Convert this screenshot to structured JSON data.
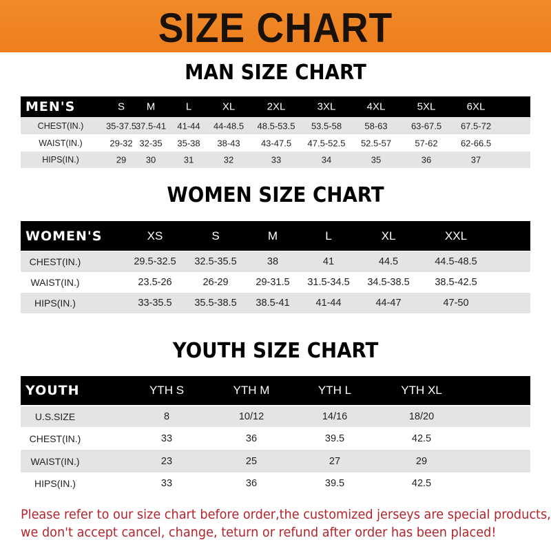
{
  "title": "SIZE CHART",
  "men": {
    "title": "MAN SIZE CHART",
    "header_label": "MEN'S",
    "sizes": [
      "S",
      "M",
      "L",
      "XL",
      "2XL",
      "3XL",
      "4XL",
      "5XL",
      "6XL"
    ],
    "rows": [
      {
        "label": "CHEST(IN.)",
        "values": [
          "35-37.5",
          "37.5-41",
          "41-44",
          "44-48.5",
          "48.5-53.5",
          "53.5-58",
          "58-63",
          "63-67.5",
          "67.5-72"
        ]
      },
      {
        "label": "WAIST(IN.)",
        "values": [
          "29-32",
          "32-35",
          "35-38",
          "38-43",
          "43-47.5",
          "47.5-52.5",
          "52.5-57",
          "57-62",
          "62-66.5"
        ]
      },
      {
        "label": "HIPS(IN.)",
        "values": [
          "29",
          "30",
          "31",
          "32",
          "33",
          "34",
          "35",
          "36",
          "37"
        ]
      }
    ]
  },
  "women": {
    "title": "WOMEN SIZE CHART",
    "header_label": "WOMEN'S",
    "sizes": [
      "XS",
      "S",
      "M",
      "L",
      "XL",
      "XXL"
    ],
    "rows": [
      {
        "label": "CHEST(IN.)",
        "values": [
          "29.5-32.5",
          "32.5-35.5",
          "38",
          "41",
          "44.5",
          "44.5-48.5"
        ]
      },
      {
        "label": "WAIST(IN.)",
        "values": [
          "23.5-26",
          "26-29",
          "29-31.5",
          "31.5-34.5",
          "34.5-38.5",
          "38.5-42.5"
        ]
      },
      {
        "label": "HIPS(IN.)",
        "values": [
          "33-35.5",
          "35.5-38.5",
          "38.5-41",
          "41-44",
          "44-47",
          "47-50"
        ]
      }
    ]
  },
  "youth": {
    "title": "YOUTH SIZE CHART",
    "header_label": "YOUTH",
    "sizes": [
      "YTH S",
      "YTH M",
      "YTH L",
      "YTH XL"
    ],
    "rows": [
      {
        "label": "U.S.SIZE",
        "values": [
          "8",
          "10/12",
          "14/16",
          "18/20"
        ]
      },
      {
        "label": "CHEST(IN.)",
        "values": [
          "33",
          "36",
          "39.5",
          "42.5"
        ]
      },
      {
        "label": "WAIST(IN.)",
        "values": [
          "23",
          "25",
          "27",
          "29"
        ]
      },
      {
        "label": "HIPS(IN.)",
        "values": [
          "33",
          "36",
          "39.5",
          "42.5"
        ]
      }
    ]
  },
  "footer": {
    "line1": "Please refer to our size chart before order,the customized jerseys are special products,",
    "line2": "we don't accept cancel, change, teturn or refund after order has been placed!"
  },
  "colors": {
    "banner": "#ee7f1c",
    "header_row": "#000000",
    "stripe": "#e4e4e4",
    "notice": "#b5232a"
  }
}
